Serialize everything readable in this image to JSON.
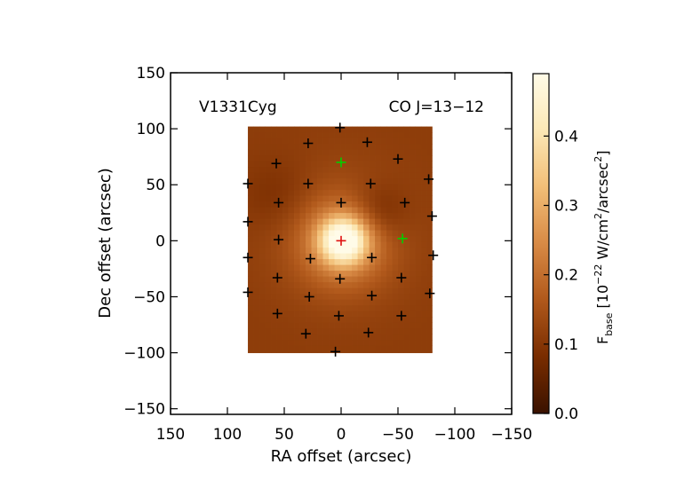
{
  "chart_data": {
    "type": "heatmap",
    "object_label": "V1331Cyg",
    "line_label": "CO J=13−12",
    "xlabel": "RA offset (arcsec)",
    "ylabel": "Dec offset (arcsec)",
    "xlim": [
      150,
      -150
    ],
    "ylim": [
      -155,
      150
    ],
    "x_ticks": [
      150,
      100,
      50,
      0,
      -50,
      -100,
      -150
    ],
    "x_tick_labels": [
      "150",
      "100",
      "50",
      "0",
      "−50",
      "−100",
      "−150"
    ],
    "y_ticks": [
      150,
      100,
      50,
      0,
      -50,
      -100,
      -150
    ],
    "y_tick_labels": [
      "150",
      "100",
      "50",
      "0",
      "−50",
      "−100",
      "−150"
    ],
    "map_extent": {
      "x": [
        82,
        -80
      ],
      "y": [
        -100,
        102
      ]
    },
    "colorbar": {
      "label_main": "F",
      "label_sub": "base",
      "label_rest": " [10",
      "label_exp": "−22",
      "label_unit": " W/cm",
      "label_unit_exp": "2",
      "label_unit2": "/arcsec",
      "label_unit2_exp": "2",
      "label_close": "]",
      "range": [
        0.0,
        0.49
      ],
      "ticks": [
        0.0,
        0.1,
        0.2,
        0.3,
        0.4
      ],
      "tick_labels": [
        "0.0",
        "0.1",
        "0.2",
        "0.3",
        "0.4"
      ],
      "colormap": [
        "#3a1200",
        "#7a2d00",
        "#b25a1c",
        "#d88a45",
        "#f2bf78",
        "#fce9b8",
        "#fffbe8"
      ]
    },
    "spaxels": [
      {
        "x": 0,
        "y": 0,
        "color": "#e01010"
      },
      {
        "x": 1,
        "y": 101,
        "color": "#000000"
      },
      {
        "x": 0,
        "y": 70,
        "color": "#00d000"
      },
      {
        "x": 29,
        "y": 87,
        "color": "#000000"
      },
      {
        "x": -23,
        "y": 88,
        "color": "#000000"
      },
      {
        "x": 57,
        "y": 69,
        "color": "#000000"
      },
      {
        "x": -50,
        "y": 73,
        "color": "#000000"
      },
      {
        "x": 82,
        "y": 51,
        "color": "#000000"
      },
      {
        "x": 29,
        "y": 51,
        "color": "#000000"
      },
      {
        "x": -26,
        "y": 51,
        "color": "#000000"
      },
      {
        "x": -77,
        "y": 55,
        "color": "#000000"
      },
      {
        "x": 55,
        "y": 34,
        "color": "#000000"
      },
      {
        "x": 0,
        "y": 34,
        "color": "#000000"
      },
      {
        "x": -56,
        "y": 34,
        "color": "#000000"
      },
      {
        "x": 82,
        "y": 17,
        "color": "#000000"
      },
      {
        "x": -80,
        "y": 22,
        "color": "#000000"
      },
      {
        "x": 55,
        "y": 1,
        "color": "#000000"
      },
      {
        "x": -54,
        "y": 2,
        "color": "#00d000"
      },
      {
        "x": 82,
        "y": -15,
        "color": "#000000"
      },
      {
        "x": 27,
        "y": -16,
        "color": "#000000"
      },
      {
        "x": -27,
        "y": -15,
        "color": "#000000"
      },
      {
        "x": -81,
        "y": -13,
        "color": "#000000"
      },
      {
        "x": 56,
        "y": -33,
        "color": "#000000"
      },
      {
        "x": 1,
        "y": -34,
        "color": "#000000"
      },
      {
        "x": -53,
        "y": -33,
        "color": "#000000"
      },
      {
        "x": 82,
        "y": -46,
        "color": "#000000"
      },
      {
        "x": 28,
        "y": -50,
        "color": "#000000"
      },
      {
        "x": -27,
        "y": -49,
        "color": "#000000"
      },
      {
        "x": -78,
        "y": -47,
        "color": "#000000"
      },
      {
        "x": 56,
        "y": -65,
        "color": "#000000"
      },
      {
        "x": 2,
        "y": -67,
        "color": "#000000"
      },
      {
        "x": -53,
        "y": -67,
        "color": "#000000"
      },
      {
        "x": 31,
        "y": -83,
        "color": "#000000"
      },
      {
        "x": -24,
        "y": -82,
        "color": "#000000"
      },
      {
        "x": 5,
        "y": -99,
        "color": "#000000"
      }
    ],
    "emission_components": [
      {
        "x": -2,
        "y": 0,
        "amplitude": 0.33,
        "sigma": 14
      },
      {
        "x": -2,
        "y": -2,
        "amplitude": 0.11,
        "sigma": 26
      },
      {
        "x": 0,
        "y": 5,
        "amplitude": 0.05,
        "sigma": 40
      }
    ],
    "dip_components": [
      {
        "x": -32,
        "y": 25,
        "amplitude": -0.06,
        "sigma": 18
      },
      {
        "x": 55,
        "y": 40,
        "amplitude": -0.03,
        "sigma": 22
      }
    ],
    "background_level": 0.11,
    "grid_on": false,
    "legend": "none"
  }
}
